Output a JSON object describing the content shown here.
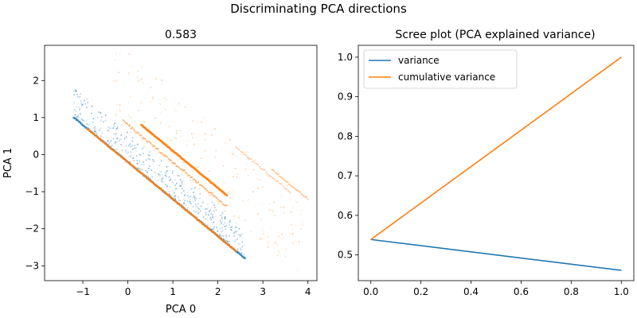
{
  "figure": {
    "suptitle": "Discriminating PCA directions"
  },
  "chart_data": [
    {
      "type": "scatter",
      "title": "0.583",
      "xlabel": "PCA 0",
      "ylabel": "PCA 1",
      "xlim": [
        -1.85,
        4.2
      ],
      "ylim": [
        -3.4,
        2.95
      ],
      "xticks": [
        -1,
        0,
        1,
        2,
        3,
        4
      ],
      "yticks": [
        -3,
        -2,
        -1,
        0,
        1,
        2
      ],
      "grid": false,
      "colors": {
        "class_a": "#1f77b4",
        "class_b": "#ff7f0e"
      },
      "series": [
        {
          "color": "#1f77b4",
          "lines": [
            {
              "x_start": -1.2,
              "x_end": 2.6,
              "intercept": -0.2,
              "density": "high"
            }
          ],
          "clouds": [
            {
              "x_range": [
                -1.2,
                2.6
              ],
              "intercept_range": [
                -0.2,
                0.6
              ],
              "density": "medium"
            }
          ]
        },
        {
          "color": "#ff7f0e",
          "lines": [
            {
              "x_start": -0.9,
              "x_end": 2.4,
              "intercept": -0.2,
              "density": "high"
            },
            {
              "x_start": 0.3,
              "x_end": 2.2,
              "intercept": 1.1,
              "density": "high"
            },
            {
              "x_start": -0.1,
              "x_end": 2.2,
              "intercept": 0.8,
              "density": "medium"
            },
            {
              "x_start": 2.4,
              "x_end": 3.6,
              "intercept": 2.6,
              "density": "low"
            },
            {
              "x_start": 3.2,
              "x_end": 4.0,
              "intercept": 2.8,
              "density": "low"
            }
          ],
          "clouds": [
            {
              "x_range": [
                -0.3,
                3.9
              ],
              "intercept_range": [
                0.6,
                2.8
              ],
              "density": "low"
            }
          ]
        }
      ]
    },
    {
      "type": "line",
      "title": "Scree plot (PCA explained variance)",
      "xlabel": "",
      "ylabel": "",
      "xlim": [
        -0.05,
        1.05
      ],
      "ylim": [
        0.435,
        1.03
      ],
      "xticks": [
        0.0,
        0.2,
        0.4,
        0.6,
        0.8,
        1.0
      ],
      "yticks": [
        0.5,
        0.6,
        0.7,
        0.8,
        0.9,
        1.0
      ],
      "grid": false,
      "legend_position": "top-left",
      "x": [
        0,
        1
      ],
      "series": [
        {
          "name": "variance",
          "color": "#1f77b4",
          "values": [
            0.539,
            0.461
          ]
        },
        {
          "name": "cumulative variance",
          "color": "#ff7f0e",
          "values": [
            0.539,
            1.0
          ]
        }
      ]
    }
  ]
}
